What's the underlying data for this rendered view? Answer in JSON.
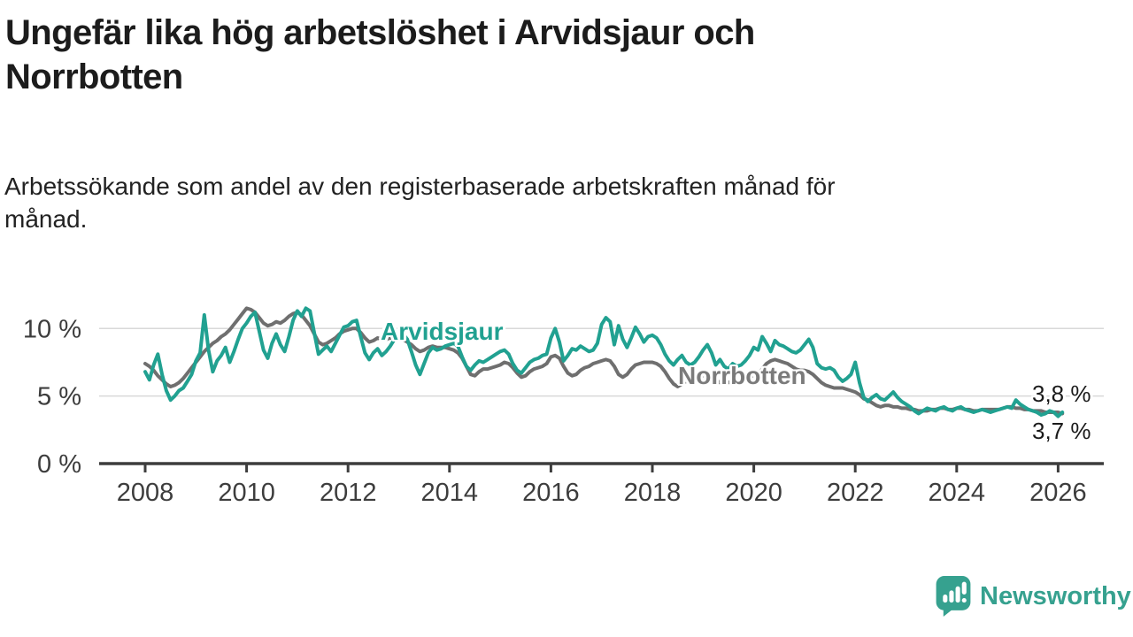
{
  "header": {
    "title": "Ungefär lika hög arbetslöshet i Arvidsjaur och\nNorrbotten",
    "subtitle": "Arbetssökande som andel av den registerbaserade arbetskraften månad för\nmånad."
  },
  "chart_data": {
    "type": "line",
    "title": "Ungefär lika hög arbetslöshet i Arvidsjaur och Norrbotten",
    "subtitle": "Arbetssökande som andel av den registerbaserade arbetskraften månad för månad.",
    "unit": "%",
    "x_start": "2008-01",
    "x_end": "2026-02",
    "points_per_year": 12,
    "x_ticks": [
      "2008",
      "2010",
      "2012",
      "2014",
      "2016",
      "2018",
      "2020",
      "2022",
      "2024",
      "2026"
    ],
    "y_axis": [
      {
        "label": "0 %",
        "value": 0
      },
      {
        "label": "5 %",
        "value": 5
      },
      {
        "label": "10 %",
        "value": 10
      }
    ],
    "ylim": [
      0,
      12.7
    ],
    "grid": "horizontal",
    "legend": "inline-labels",
    "series": [
      {
        "name": "Arvidsjaur",
        "color": "#21a191",
        "end_label": "3,8 %",
        "end_value": 3.8,
        "values": [
          6.8,
          6.2,
          7.3,
          8.1,
          6.6,
          5.4,
          4.7,
          5.0,
          5.4,
          5.6,
          6.1,
          6.6,
          7.6,
          8.2,
          11.0,
          8.4,
          6.8,
          7.6,
          8.0,
          8.6,
          7.5,
          8.3,
          9.2,
          10.0,
          10.4,
          10.9,
          11.2,
          9.8,
          8.4,
          7.8,
          8.9,
          9.6,
          8.8,
          8.3,
          9.4,
          10.6,
          11.3,
          10.9,
          11.5,
          11.3,
          9.7,
          8.1,
          8.4,
          8.7,
          8.3,
          8.9,
          9.5,
          10.1,
          10.2,
          10.5,
          10.6,
          9.4,
          8.2,
          7.7,
          8.2,
          8.5,
          8.0,
          8.3,
          8.7,
          9.2,
          9.4,
          9.6,
          9.2,
          8.3,
          7.3,
          6.6,
          7.4,
          8.2,
          8.6,
          8.4,
          8.5,
          8.7,
          8.8,
          8.9,
          8.7,
          7.9,
          7.2,
          6.9,
          7.3,
          7.6,
          7.5,
          7.7,
          7.9,
          8.1,
          8.3,
          8.4,
          8.1,
          7.4,
          6.9,
          6.7,
          7.1,
          7.5,
          7.7,
          7.8,
          8.0,
          8.1,
          9.3,
          10.0,
          9.0,
          7.6,
          8.0,
          8.5,
          8.4,
          8.7,
          8.5,
          8.3,
          8.4,
          8.9,
          10.3,
          10.8,
          10.5,
          8.8,
          10.2,
          9.2,
          8.6,
          9.3,
          10.1,
          9.6,
          9.0,
          9.4,
          9.5,
          9.3,
          8.8,
          8.1,
          7.6,
          7.3,
          7.7,
          8.0,
          7.5,
          7.3,
          7.5,
          7.9,
          8.4,
          8.8,
          8.2,
          7.3,
          7.7,
          7.2,
          7.0,
          7.4,
          7.2,
          7.3,
          7.6,
          8.0,
          8.6,
          8.4,
          9.4,
          8.9,
          8.3,
          9.1,
          8.8,
          8.7,
          8.5,
          8.3,
          8.2,
          8.4,
          8.8,
          9.2,
          8.6,
          7.4,
          7.1,
          7.0,
          7.1,
          6.9,
          6.4,
          6.1,
          6.3,
          6.6,
          7.5,
          6.0,
          4.9,
          4.6,
          4.9,
          5.1,
          4.8,
          4.7,
          5.0,
          5.3,
          4.9,
          4.6,
          4.4,
          4.2,
          3.9,
          3.7,
          3.9,
          4.1,
          4.0,
          3.9,
          4.1,
          4.2,
          4.0,
          3.9,
          4.1,
          4.2,
          4.0,
          3.9,
          3.8,
          3.9,
          4.0,
          3.9,
          3.8,
          3.9,
          4.0,
          4.1,
          4.2,
          4.1,
          4.7,
          4.4,
          4.2,
          4.0,
          3.9,
          3.8,
          3.6,
          3.7,
          3.9,
          3.8,
          3.5,
          3.8
        ]
      },
      {
        "name": "Norrbotten",
        "color": "#6f6f6f",
        "end_label": "3,7 %",
        "end_value": 3.7,
        "values": [
          7.4,
          7.2,
          6.9,
          6.5,
          6.2,
          5.9,
          5.7,
          5.8,
          6.0,
          6.3,
          6.7,
          7.1,
          7.5,
          7.9,
          8.3,
          8.6,
          8.9,
          9.1,
          9.4,
          9.6,
          9.9,
          10.3,
          10.7,
          11.1,
          11.5,
          11.4,
          11.2,
          10.8,
          10.4,
          10.2,
          10.3,
          10.5,
          10.4,
          10.6,
          10.9,
          11.1,
          11.2,
          11.0,
          10.6,
          10.2,
          9.6,
          9.0,
          8.8,
          8.9,
          9.1,
          9.3,
          9.6,
          9.8,
          9.9,
          10.0,
          10.0,
          9.7,
          9.3,
          9.0,
          9.1,
          9.3,
          9.2,
          9.2,
          9.3,
          9.3,
          9.3,
          9.2,
          9.0,
          8.8,
          8.5,
          8.3,
          8.4,
          8.6,
          8.7,
          8.6,
          8.6,
          8.6,
          8.5,
          8.4,
          8.2,
          7.8,
          7.2,
          6.6,
          6.5,
          6.8,
          7.0,
          7.0,
          7.1,
          7.2,
          7.3,
          7.5,
          7.4,
          7.1,
          6.7,
          6.4,
          6.5,
          6.8,
          7.0,
          7.1,
          7.2,
          7.4,
          7.9,
          8.0,
          7.8,
          7.2,
          6.7,
          6.5,
          6.6,
          6.9,
          7.1,
          7.2,
          7.4,
          7.5,
          7.6,
          7.7,
          7.6,
          7.2,
          6.6,
          6.4,
          6.6,
          7.0,
          7.3,
          7.4,
          7.5,
          7.5,
          7.5,
          7.4,
          7.2,
          6.8,
          6.3,
          5.9,
          5.7,
          5.9,
          6.1,
          6.2,
          6.3,
          6.4,
          6.5,
          6.5,
          6.4,
          6.2,
          6.0,
          5.9,
          6.0,
          6.1,
          6.2,
          6.2,
          6.3,
          6.4,
          6.5,
          6.6,
          7.0,
          7.4,
          7.6,
          7.7,
          7.6,
          7.5,
          7.4,
          7.2,
          7.0,
          6.9,
          6.9,
          6.8,
          6.6,
          6.3,
          6.0,
          5.8,
          5.7,
          5.6,
          5.6,
          5.6,
          5.5,
          5.4,
          5.3,
          5.1,
          4.8,
          4.7,
          4.5,
          4.3,
          4.2,
          4.3,
          4.3,
          4.2,
          4.2,
          4.1,
          4.1,
          4.0,
          4.0,
          3.9,
          3.9,
          3.9,
          4.0,
          4.0,
          4.1,
          4.1,
          4.0,
          4.0,
          4.1,
          4.1,
          4.0,
          4.0,
          3.9,
          3.9,
          4.0,
          4.0,
          4.0,
          4.0,
          4.0,
          4.1,
          4.2,
          4.2,
          4.1,
          4.1,
          4.0,
          4.0,
          3.9,
          3.9,
          3.9,
          3.8,
          3.8,
          3.8,
          3.8,
          3.7
        ]
      }
    ]
  },
  "footer": {
    "brand": "Newsworthy"
  },
  "colors": {
    "background": "#ffffff",
    "title": "#1c1c1c",
    "subtitle": "#222222",
    "axis": "#3d3d3d",
    "tick_text": "#3d3d3d",
    "grid": "#d9d9d9",
    "accent_teal": "#21a191",
    "series_gray": "#6f6f6f",
    "norrbotten_label": "#7b7b7b",
    "end_label_text": "#1a1a1a",
    "logo_teal": "#36a18f"
  }
}
